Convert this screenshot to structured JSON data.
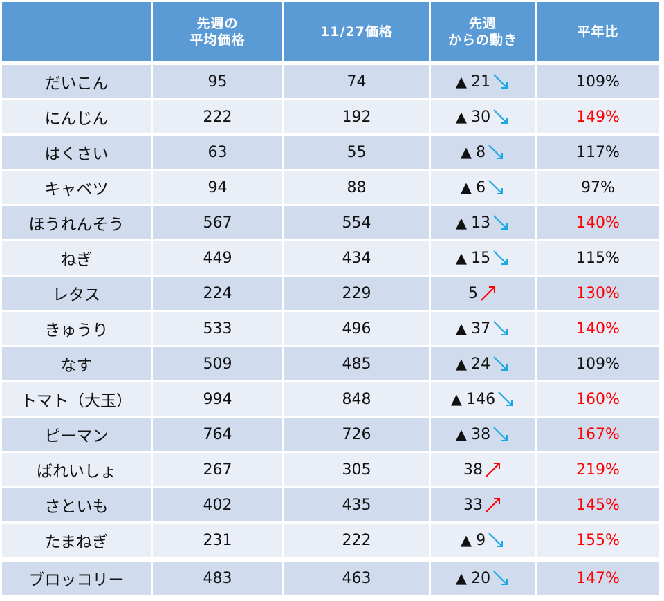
{
  "table": {
    "columns": [
      {
        "line1": "",
        "line2": ""
      },
      {
        "line1": "先週の",
        "line2": "平均価格"
      },
      {
        "line1": "11/27価格",
        "line2": ""
      },
      {
        "line1": "先週",
        "line2": "からの動き"
      },
      {
        "line1": "平年比",
        "line2": ""
      }
    ],
    "rows": [
      {
        "name": "だいこん",
        "prev_avg": "95",
        "price": "74",
        "down": true,
        "change": "21",
        "ratio": "109%",
        "ratio_high": false
      },
      {
        "name": "にんじん",
        "prev_avg": "222",
        "price": "192",
        "down": true,
        "change": "30",
        "ratio": "149%",
        "ratio_high": true
      },
      {
        "name": "はくさい",
        "prev_avg": "63",
        "price": "55",
        "down": true,
        "change": "8",
        "ratio": "117%",
        "ratio_high": false
      },
      {
        "name": "キャベツ",
        "prev_avg": "94",
        "price": "88",
        "down": true,
        "change": "6",
        "ratio": "97%",
        "ratio_high": false
      },
      {
        "name": "ほうれんそう",
        "prev_avg": "567",
        "price": "554",
        "down": true,
        "change": "13",
        "ratio": "140%",
        "ratio_high": true
      },
      {
        "name": "ねぎ",
        "prev_avg": "449",
        "price": "434",
        "down": true,
        "change": "15",
        "ratio": "115%",
        "ratio_high": false
      },
      {
        "name": "レタス",
        "prev_avg": "224",
        "price": "229",
        "down": false,
        "change": "5",
        "ratio": "130%",
        "ratio_high": true
      },
      {
        "name": "きゅうり",
        "prev_avg": "533",
        "price": "496",
        "down": true,
        "change": "37",
        "ratio": "140%",
        "ratio_high": true
      },
      {
        "name": "なす",
        "prev_avg": "509",
        "price": "485",
        "down": true,
        "change": "24",
        "ratio": "109%",
        "ratio_high": false
      },
      {
        "name": "トマト（大玉）",
        "prev_avg": "994",
        "price": "848",
        "down": true,
        "change": "146",
        "ratio": "160%",
        "ratio_high": true
      },
      {
        "name": "ピーマン",
        "prev_avg": "764",
        "price": "726",
        "down": true,
        "change": "38",
        "ratio": "167%",
        "ratio_high": true
      },
      {
        "name": "ばれいしょ",
        "prev_avg": "267",
        "price": "305",
        "down": false,
        "change": "38",
        "ratio": "219%",
        "ratio_high": true
      },
      {
        "name": "さといも",
        "prev_avg": "402",
        "price": "435",
        "down": false,
        "change": "33",
        "ratio": "145%",
        "ratio_high": true
      },
      {
        "name": "たまねぎ",
        "prev_avg": "231",
        "price": "222",
        "down": true,
        "change": "9",
        "ratio": "155%",
        "ratio_high": true
      },
      {
        "name": "ブロッコリー",
        "prev_avg": "483",
        "price": "463",
        "down": true,
        "change": "20",
        "ratio": "147%",
        "ratio_high": true
      }
    ]
  },
  "symbols": {
    "decrease_marker": "▲",
    "down_arrow_icon": "arrow-down-right-icon",
    "up_arrow_icon": "arrow-up-right-icon"
  },
  "colors": {
    "header_bg": "#5b9bd5",
    "row_dark": "#d0dcee",
    "row_light": "#e9eef7",
    "down_arrow": "#1aa7e6",
    "up_arrow": "#ff0000",
    "ratio_high": "#ff0000"
  }
}
